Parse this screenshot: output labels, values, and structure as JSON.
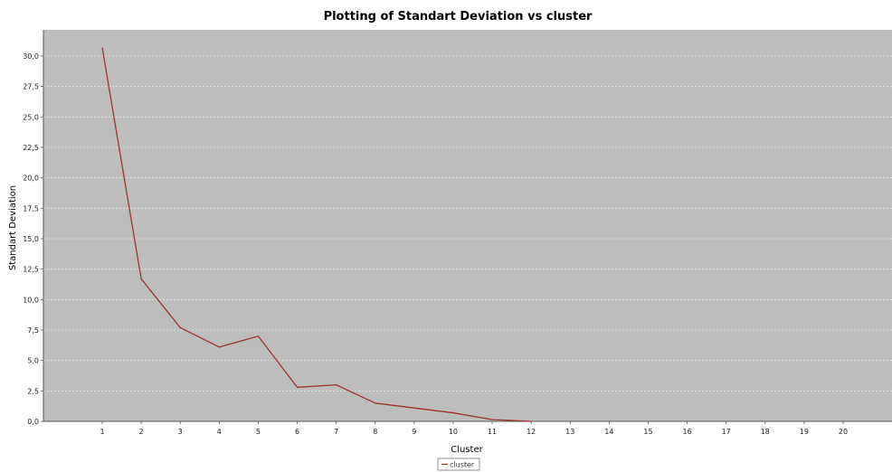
{
  "chart_data": {
    "type": "line",
    "title": "Plotting of Standart Deviation vs cluster",
    "xlabel": "Cluster",
    "ylabel": "Standart Deviation",
    "x_ticks": [
      "1",
      "2",
      "3",
      "4",
      "5",
      "6",
      "7",
      "8",
      "9",
      "10",
      "11",
      "12",
      "13",
      "14",
      "15",
      "16",
      "17",
      "18",
      "19",
      "20"
    ],
    "y_ticks": [
      "0,0",
      "2,5",
      "5,0",
      "7,5",
      "10,0",
      "12,5",
      "15,0",
      "17,5",
      "20,0",
      "22,5",
      "25,0",
      "27,5",
      "30,0"
    ],
    "xlim": [
      0,
      21.3
    ],
    "ylim": [
      0,
      32
    ],
    "grid": true,
    "legend_position": "bottom-center",
    "colors": {
      "plot_bg": "#bdbdbd",
      "line": "#a0302c",
      "grid": "#e8e8e8"
    },
    "series": [
      {
        "name": "cluster",
        "x": [
          1,
          2,
          3,
          4,
          5,
          6,
          7,
          8,
          9,
          10,
          11,
          12
        ],
        "y": [
          30.7,
          11.7,
          7.7,
          6.1,
          7.0,
          2.8,
          3.0,
          1.5,
          1.1,
          0.7,
          0.15,
          0.0
        ]
      }
    ]
  }
}
